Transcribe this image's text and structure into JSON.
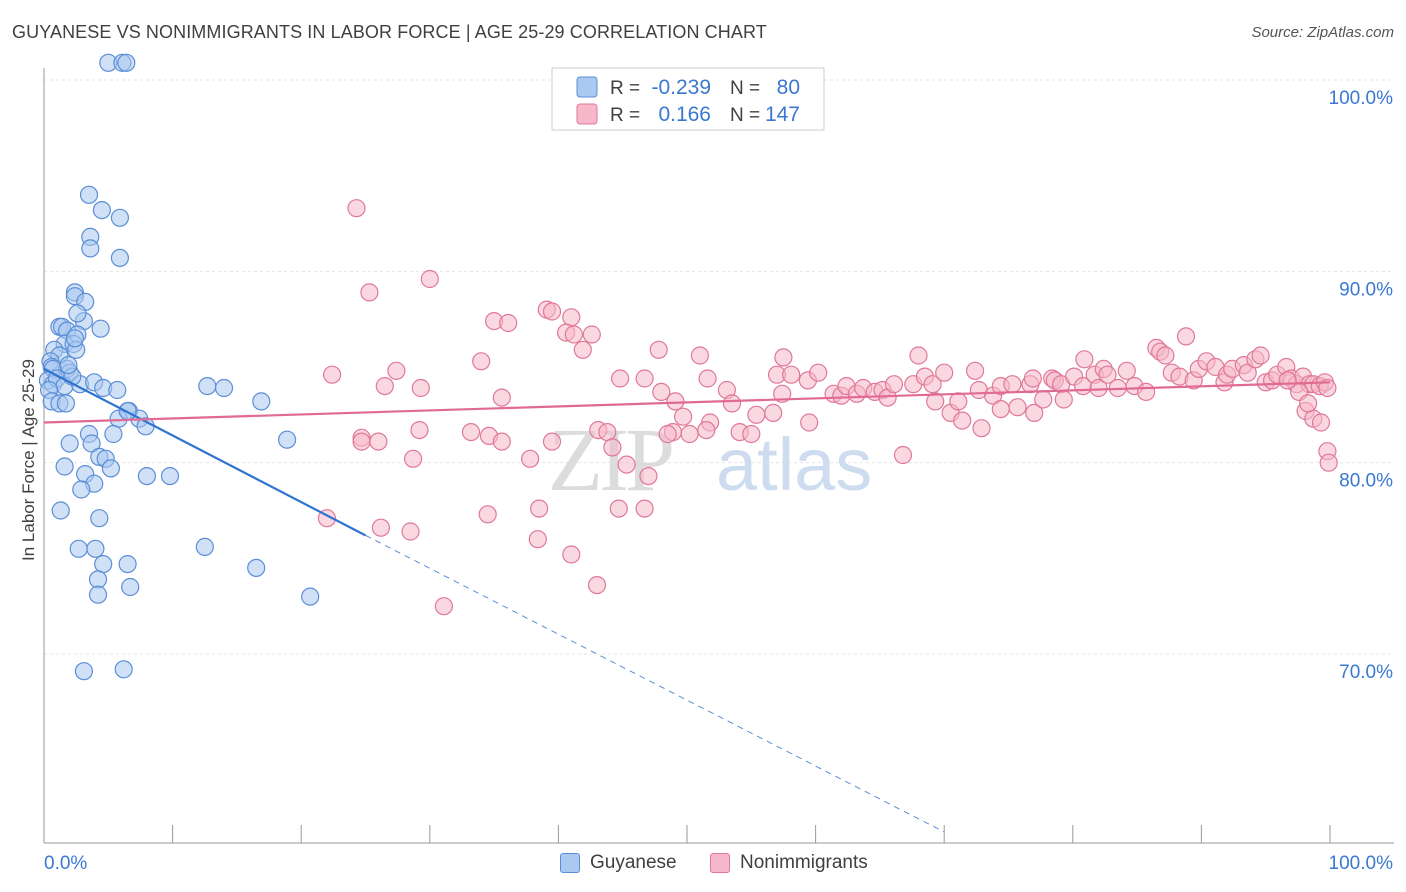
{
  "title": "GUYANESE VS NONIMMIGRANTS IN LABOR FORCE | AGE 25-29 CORRELATION CHART",
  "source": "Source: ZipAtlas.com",
  "watermark": {
    "zip": "ZIP",
    "atlas": "atlas"
  },
  "legend": {
    "r_label": "R =",
    "n_label": "N =",
    "rows": [
      {
        "r": "-0.239",
        "n": "80",
        "fill": "#a9c9f0",
        "stroke": "#5b8ed6",
        "value_color": "#3a78d2"
      },
      {
        "r": "0.166",
        "n": "147",
        "fill": "#f6b8ca",
        "stroke": "#e07898",
        "value_color": "#3a78d2"
      }
    ]
  },
  "bottom_legend": [
    {
      "label": "Guyanese",
      "fill": "#a9c9f0",
      "stroke": "#5b8ed6"
    },
    {
      "label": "Nonimmigrants",
      "fill": "#f6b8ca",
      "stroke": "#e07898"
    }
  ],
  "chart_data": {
    "type": "scatter",
    "title": "GUYANESE VS NONIMMIGRANTS IN LABOR FORCE | AGE 25-29 CORRELATION CHART",
    "xlabel": "",
    "ylabel": "In Labor Force | Age 25-29",
    "xlim": [
      0,
      100
    ],
    "ylim": [
      60,
      101
    ],
    "x_tick_labels": [
      "0.0%",
      "100.0%"
    ],
    "y_ticks": [
      100,
      90,
      80,
      70
    ],
    "y_tick_labels": [
      "100.0%",
      "90.0%",
      "80.0%",
      "70.0%"
    ],
    "grid": true,
    "legend_position": "top-center",
    "series": [
      {
        "name": "Guyanese",
        "color": "#5b8ed6",
        "fill": "#a9c9f0",
        "r": -0.239,
        "n": 80,
        "trend": {
          "x0": 0,
          "y0": 84.9,
          "x1": 25.0,
          "y1": 76.2,
          "dash_to_x": 70,
          "dash_to_y": 60.7
        },
        "points": [
          [
            5.0,
            100.9
          ],
          [
            6.1,
            100.9
          ],
          [
            6.4,
            100.9
          ],
          [
            3.5,
            94.0
          ],
          [
            4.5,
            93.2
          ],
          [
            5.9,
            92.8
          ],
          [
            3.6,
            91.8
          ],
          [
            3.6,
            91.2
          ],
          [
            5.9,
            90.7
          ],
          [
            2.4,
            88.9
          ],
          [
            2.4,
            88.7
          ],
          [
            3.2,
            88.4
          ],
          [
            3.1,
            87.4
          ],
          [
            2.6,
            87.8
          ],
          [
            1.2,
            87.1
          ],
          [
            1.4,
            87.1
          ],
          [
            1.8,
            86.9
          ],
          [
            2.6,
            86.7
          ],
          [
            4.4,
            87.0
          ],
          [
            1.6,
            86.2
          ],
          [
            2.3,
            86.2
          ],
          [
            2.5,
            85.9
          ],
          [
            0.8,
            85.9
          ],
          [
            1.2,
            85.6
          ],
          [
            0.5,
            85.3
          ],
          [
            0.6,
            85.0
          ],
          [
            1.8,
            84.9
          ],
          [
            0.7,
            84.9
          ],
          [
            2.0,
            84.7
          ],
          [
            0.3,
            84.3
          ],
          [
            0.7,
            84.1
          ],
          [
            1.0,
            84.4
          ],
          [
            1.6,
            84.0
          ],
          [
            2.8,
            84.1
          ],
          [
            3.9,
            84.2
          ],
          [
            0.4,
            83.8
          ],
          [
            0.6,
            83.2
          ],
          [
            1.2,
            83.1
          ],
          [
            1.7,
            83.1
          ],
          [
            4.6,
            83.9
          ],
          [
            5.7,
            83.8
          ],
          [
            6.6,
            82.7
          ],
          [
            5.8,
            82.3
          ],
          [
            7.4,
            82.3
          ],
          [
            7.9,
            81.9
          ],
          [
            6.5,
            82.7
          ],
          [
            16.9,
            83.2
          ],
          [
            12.7,
            84.0
          ],
          [
            14.0,
            83.9
          ],
          [
            5.4,
            81.5
          ],
          [
            3.5,
            81.5
          ],
          [
            2.0,
            81.0
          ],
          [
            3.7,
            81.0
          ],
          [
            4.3,
            80.3
          ],
          [
            4.8,
            80.2
          ],
          [
            5.2,
            79.7
          ],
          [
            1.6,
            79.8
          ],
          [
            3.2,
            79.4
          ],
          [
            3.9,
            78.9
          ],
          [
            2.9,
            78.6
          ],
          [
            8.0,
            79.3
          ],
          [
            9.8,
            79.3
          ],
          [
            18.9,
            81.2
          ],
          [
            1.3,
            77.5
          ],
          [
            4.3,
            77.1
          ],
          [
            2.7,
            75.5
          ],
          [
            4.0,
            75.5
          ],
          [
            4.6,
            74.7
          ],
          [
            6.5,
            74.7
          ],
          [
            16.5,
            74.5
          ],
          [
            12.5,
            75.6
          ],
          [
            4.2,
            73.9
          ],
          [
            6.7,
            73.5
          ],
          [
            4.2,
            73.1
          ],
          [
            20.7,
            73.0
          ],
          [
            3.1,
            69.1
          ],
          [
            6.2,
            69.2
          ],
          [
            2.4,
            86.5
          ],
          [
            2.2,
            84.5
          ],
          [
            1.9,
            85.1
          ]
        ]
      },
      {
        "name": "Nonimmigrants",
        "color": "#e07898",
        "fill": "#f6b8ca",
        "r": 0.166,
        "n": 147,
        "trend": {
          "x0": 0,
          "y0": 82.1,
          "x1": 100,
          "y1": 84.2
        },
        "points": [
          [
            24.3,
            93.3
          ],
          [
            30.0,
            89.6
          ],
          [
            25.3,
            88.9
          ],
          [
            39.1,
            88.0
          ],
          [
            35.0,
            87.4
          ],
          [
            36.1,
            87.3
          ],
          [
            39.5,
            87.9
          ],
          [
            41.0,
            87.6
          ],
          [
            40.6,
            86.8
          ],
          [
            41.2,
            86.7
          ],
          [
            42.6,
            86.7
          ],
          [
            41.9,
            85.9
          ],
          [
            47.8,
            85.9
          ],
          [
            34.0,
            85.3
          ],
          [
            27.4,
            84.8
          ],
          [
            22.4,
            84.6
          ],
          [
            26.5,
            84.0
          ],
          [
            29.3,
            83.9
          ],
          [
            35.6,
            83.4
          ],
          [
            44.8,
            84.4
          ],
          [
            46.7,
            84.4
          ],
          [
            48.0,
            83.7
          ],
          [
            49.1,
            83.2
          ],
          [
            49.7,
            82.4
          ],
          [
            48.9,
            81.6
          ],
          [
            50.2,
            81.5
          ],
          [
            51.8,
            82.1
          ],
          [
            51.6,
            84.4
          ],
          [
            51.0,
            85.6
          ],
          [
            53.1,
            83.8
          ],
          [
            53.5,
            83.1
          ],
          [
            54.1,
            81.6
          ],
          [
            55.0,
            81.5
          ],
          [
            55.4,
            82.5
          ],
          [
            56.7,
            82.6
          ],
          [
            57.0,
            84.6
          ],
          [
            57.4,
            83.6
          ],
          [
            57.5,
            85.5
          ],
          [
            58.1,
            84.6
          ],
          [
            59.4,
            84.3
          ],
          [
            59.5,
            82.1
          ],
          [
            60.2,
            84.7
          ],
          [
            61.4,
            83.6
          ],
          [
            62.0,
            83.5
          ],
          [
            62.4,
            84.0
          ],
          [
            63.2,
            83.6
          ],
          [
            63.7,
            83.9
          ],
          [
            64.6,
            83.7
          ],
          [
            65.2,
            83.8
          ],
          [
            65.6,
            83.4
          ],
          [
            66.1,
            84.1
          ],
          [
            66.8,
            80.4
          ],
          [
            67.6,
            84.1
          ],
          [
            68.0,
            85.6
          ],
          [
            68.5,
            84.5
          ],
          [
            69.1,
            84.1
          ],
          [
            69.3,
            83.2
          ],
          [
            70.0,
            84.7
          ],
          [
            70.5,
            82.6
          ],
          [
            71.1,
            83.2
          ],
          [
            71.4,
            82.2
          ],
          [
            72.4,
            84.8
          ],
          [
            72.7,
            83.8
          ],
          [
            72.9,
            81.8
          ],
          [
            73.8,
            83.5
          ],
          [
            74.4,
            82.8
          ],
          [
            74.4,
            84.0
          ],
          [
            75.3,
            84.1
          ],
          [
            75.7,
            82.9
          ],
          [
            76.7,
            84.1
          ],
          [
            76.9,
            84.4
          ],
          [
            77.0,
            82.6
          ],
          [
            77.7,
            83.3
          ],
          [
            78.4,
            84.4
          ],
          [
            78.6,
            84.3
          ],
          [
            79.1,
            84.1
          ],
          [
            79.3,
            83.3
          ],
          [
            80.1,
            84.5
          ],
          [
            80.8,
            84.0
          ],
          [
            80.9,
            85.4
          ],
          [
            81.7,
            84.6
          ],
          [
            82.0,
            83.9
          ],
          [
            82.4,
            84.9
          ],
          [
            82.7,
            84.6
          ],
          [
            83.5,
            83.9
          ],
          [
            84.2,
            84.8
          ],
          [
            84.8,
            84.0
          ],
          [
            85.7,
            83.7
          ],
          [
            86.5,
            86.0
          ],
          [
            86.8,
            85.8
          ],
          [
            87.2,
            85.6
          ],
          [
            87.7,
            84.7
          ],
          [
            88.3,
            84.5
          ],
          [
            88.8,
            86.6
          ],
          [
            89.4,
            84.3
          ],
          [
            89.8,
            84.9
          ],
          [
            90.4,
            85.3
          ],
          [
            91.1,
            85.0
          ],
          [
            91.8,
            84.2
          ],
          [
            92.0,
            84.6
          ],
          [
            92.4,
            84.9
          ],
          [
            93.3,
            85.1
          ],
          [
            93.6,
            84.7
          ],
          [
            94.2,
            85.4
          ],
          [
            94.6,
            85.6
          ],
          [
            95.0,
            84.2
          ],
          [
            95.5,
            84.3
          ],
          [
            95.9,
            84.6
          ],
          [
            96.6,
            85.0
          ],
          [
            97.0,
            84.4
          ],
          [
            97.4,
            84.1
          ],
          [
            97.9,
            84.5
          ],
          [
            98.4,
            84.1
          ],
          [
            98.7,
            84.1
          ],
          [
            99.2,
            84.0
          ],
          [
            99.6,
            84.2
          ],
          [
            99.8,
            83.9
          ],
          [
            97.6,
            83.7
          ],
          [
            98.1,
            82.7
          ],
          [
            98.7,
            82.3
          ],
          [
            99.3,
            82.1
          ],
          [
            99.8,
            80.6
          ],
          [
            99.9,
            80.0
          ],
          [
            98.3,
            83.1
          ],
          [
            96.7,
            84.3
          ],
          [
            33.2,
            81.6
          ],
          [
            34.6,
            81.4
          ],
          [
            29.2,
            81.7
          ],
          [
            24.7,
            81.3
          ],
          [
            24.7,
            81.1
          ],
          [
            26.0,
            81.1
          ],
          [
            28.7,
            80.2
          ],
          [
            35.6,
            81.1
          ],
          [
            43.1,
            81.7
          ],
          [
            43.8,
            81.6
          ],
          [
            44.2,
            80.8
          ],
          [
            48.5,
            81.5
          ],
          [
            51.5,
            81.7
          ],
          [
            39.5,
            81.1
          ],
          [
            47.0,
            79.3
          ],
          [
            37.8,
            80.2
          ],
          [
            34.5,
            77.3
          ],
          [
            28.5,
            76.4
          ],
          [
            22.0,
            77.1
          ],
          [
            26.2,
            76.6
          ],
          [
            38.5,
            77.6
          ],
          [
            44.7,
            77.6
          ],
          [
            46.7,
            77.6
          ],
          [
            45.3,
            79.9
          ],
          [
            41.0,
            75.2
          ],
          [
            43.0,
            73.6
          ],
          [
            31.1,
            72.5
          ],
          [
            38.4,
            76.0
          ]
        ]
      }
    ]
  }
}
